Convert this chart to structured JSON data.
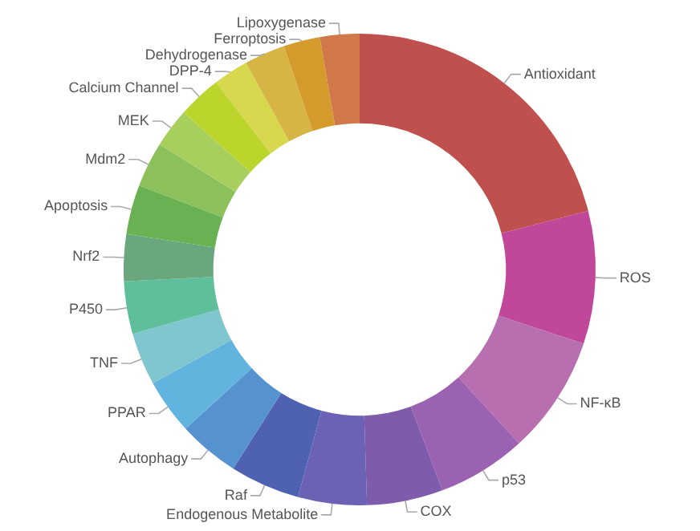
{
  "chart_data": {
    "type": "donut",
    "categories": [
      "Antioxidant",
      "ROS",
      "NF-κB",
      "p53",
      "COX",
      "Endogenous Metabolite",
      "Raf",
      "Autophagy",
      "PPAR",
      "TNF",
      "P450",
      "Nrf2",
      "Apoptosis",
      "Mdm2",
      "MEK",
      "Calcium Channel",
      "DPP-4",
      "Dehydrogenase",
      "Ferroptosis",
      "Lipoxygenase"
    ],
    "values": [
      21.0,
      9.1,
      8.1,
      6.1,
      5.2,
      4.7,
      4.8,
      4.2,
      3.8,
      3.6,
      3.6,
      3.2,
      3.4,
      3.1,
      2.7,
      3.0,
      2.4,
      2.8,
      2.5,
      2.7
    ],
    "colors": [
      "#c0504d",
      "#c0479a",
      "#b86fb0",
      "#9a62b0",
      "#7f5bab",
      "#6b62b5",
      "#4f62b2",
      "#5592cf",
      "#62b4de",
      "#80c6cf",
      "#5fbf9a",
      "#6aa77e",
      "#6ab154",
      "#8cc05a",
      "#a8cf5e",
      "#bcd52c",
      "#d8d84f",
      "#d6b544",
      "#d49a2c",
      "#d0784a"
    ],
    "legend": false
  }
}
